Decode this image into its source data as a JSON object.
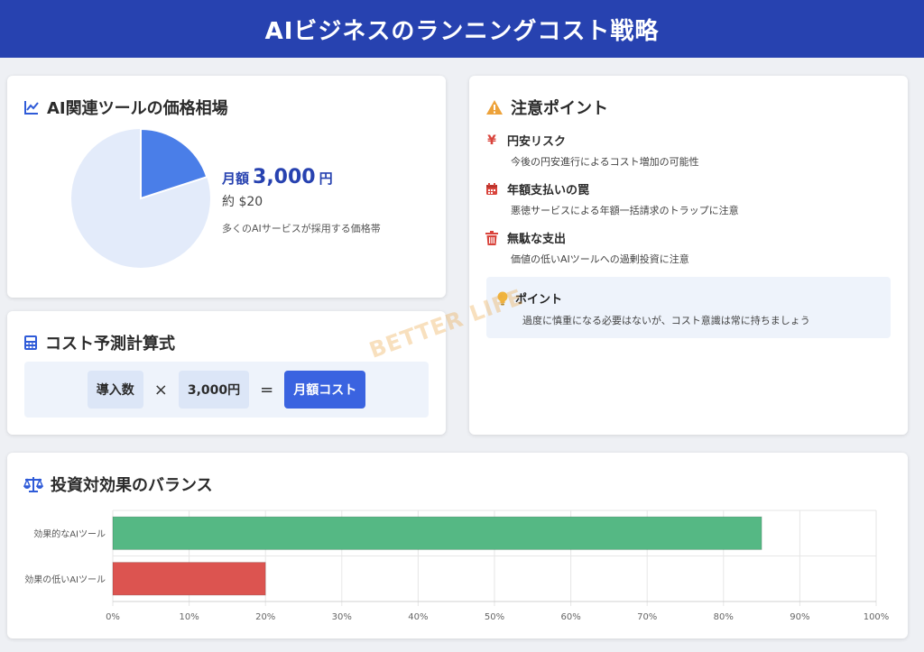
{
  "header": {
    "title": "AIビジネスのランニングコスト戦略"
  },
  "pie_card": {
    "title": "AI関連ツールの価格相場",
    "price_prefix": "月額",
    "price_value": "3,000",
    "price_unit": "円",
    "price_usd": "約 $20",
    "note": "多くのAIサービスが採用する価格帯",
    "slice_fraction": 0.2,
    "colors": {
      "slice": "#4a7ee8",
      "rest": "#e3ebfa"
    }
  },
  "formula_card": {
    "title": "コスト予測計算式",
    "term1": "導入数",
    "times": "×",
    "term2": "3,000円",
    "equals": "=",
    "result": "月額コスト"
  },
  "warn_card": {
    "title": "注意ポイント",
    "items": [
      {
        "icon": "yen-icon",
        "title": "円安リスク",
        "desc": "今後の円安進行によるコスト増加の可能性"
      },
      {
        "icon": "calendar-icon",
        "title": "年額支払いの罠",
        "desc": "悪徳サービスによる年額一括請求のトラップに注意"
      },
      {
        "icon": "trash-icon",
        "title": "無駄な支出",
        "desc": "価値の低いAIツールへの過剰投資に注意"
      }
    ],
    "point": {
      "icon": "lightbulb-icon",
      "title": "ポイント",
      "desc": "過度に慎重になる必要はないが、コスト意識は常に持ちましょう"
    }
  },
  "watermark": "BETTER LIFE",
  "bars_card": {
    "title": "投資対効果のバランス"
  },
  "chart_data": {
    "type": "bar",
    "orientation": "horizontal",
    "categories": [
      "効果的なAIツール",
      "効果の低いAIツール"
    ],
    "values": [
      85,
      20
    ],
    "colors": [
      "#55b884",
      "#dc5450"
    ],
    "xlim": [
      0,
      100
    ],
    "ticks": [
      "0%",
      "10%",
      "20%",
      "30%",
      "40%",
      "50%",
      "60%",
      "70%",
      "80%",
      "90%",
      "100%"
    ],
    "grid": true,
    "legend": "none"
  }
}
